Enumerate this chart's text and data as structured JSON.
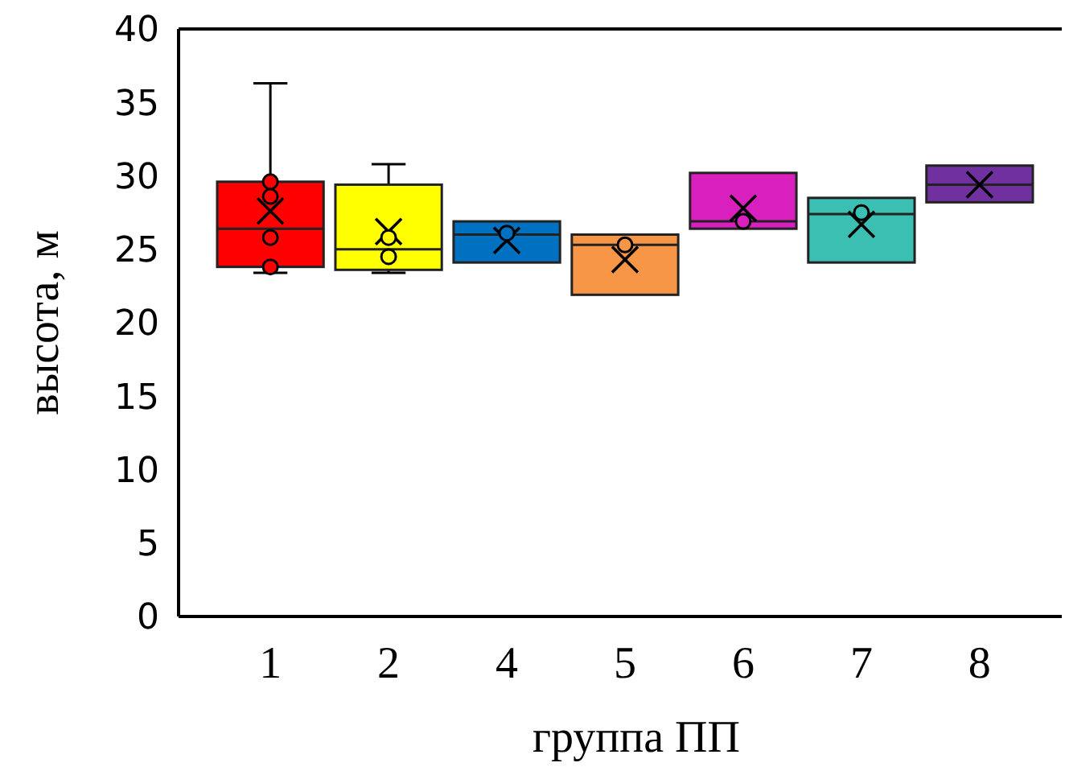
{
  "chart_data": {
    "type": "box",
    "xlabel": "группа ПП",
    "ylabel": "высота, м",
    "categories": [
      "1",
      "2",
      "4",
      "5",
      "6",
      "7",
      "8"
    ],
    "colors": [
      "#ff0000",
      "#ffff00",
      "#0070c0",
      "#f79646",
      "#d91fbd",
      "#3bbfb3",
      "#7030a0"
    ],
    "boxes": [
      {
        "low": 23.4,
        "q1": 23.8,
        "median": 26.4,
        "q3": 29.6,
        "high": 36.3,
        "mean": 27.6
      },
      {
        "low": 23.4,
        "q1": 23.6,
        "median": 25.0,
        "q3": 29.4,
        "high": 30.8,
        "mean": 26.2
      },
      {
        "low": 24.1,
        "q1": 24.1,
        "median": 26.0,
        "q3": 26.9,
        "high": 26.9,
        "mean": 25.6
      },
      {
        "low": 21.9,
        "q1": 21.9,
        "median": 25.3,
        "q3": 26.0,
        "high": 26.0,
        "mean": 24.3
      },
      {
        "low": 26.4,
        "q1": 26.4,
        "median": 26.9,
        "q3": 30.2,
        "high": 30.2,
        "mean": 27.8
      },
      {
        "low": 24.1,
        "q1": 24.1,
        "median": 27.4,
        "q3": 28.5,
        "high": 28.5,
        "mean": 26.7
      },
      {
        "low": 28.2,
        "q1": 28.2,
        "median": 29.4,
        "q3": 30.7,
        "high": 30.7,
        "mean": 29.4
      }
    ],
    "series": [
      {
        "type": "scatter",
        "x": [
          "1",
          "1",
          "1",
          "1",
          "2",
          "2",
          "4",
          "5",
          "6",
          "7"
        ],
        "values": [
          29.6,
          28.6,
          25.8,
          23.8,
          25.8,
          24.5,
          26.1,
          25.3,
          26.9,
          27.5
        ],
        "colors": [
          "#ff0000",
          "#ff0000",
          "#ff0000",
          "#ff0000",
          "#ffff00",
          "#ffff00",
          "#0070c0",
          "#f79646",
          "#d91fbd",
          "#3bbfb3"
        ]
      }
    ],
    "marker": "circle",
    "ylim": [
      0,
      40
    ],
    "yticks": [
      0,
      5,
      10,
      15,
      20,
      25,
      30,
      35,
      40
    ]
  }
}
